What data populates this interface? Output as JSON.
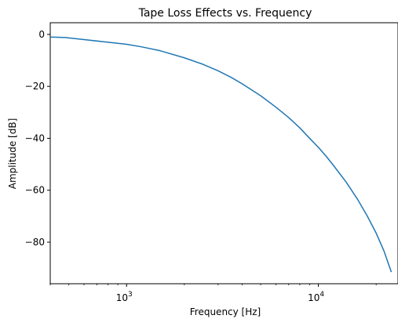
{
  "chart_data": {
    "type": "line",
    "title": "Tape Loss Effects vs. Frequency",
    "xlabel": "Frequency [Hz]",
    "ylabel": "Amplitude [dB]",
    "xscale": "log",
    "xlim": [
      400,
      26000
    ],
    "ylim": [
      -96,
      4.5
    ],
    "grid": false,
    "line_color": "#1f77b4",
    "x_ticks": [
      {
        "value": 1000,
        "base": "10",
        "exp": "3"
      },
      {
        "value": 10000,
        "base": "10",
        "exp": "4"
      }
    ],
    "y_ticks": [
      {
        "value": 0,
        "label": "0"
      },
      {
        "value": -20,
        "label": "−20"
      },
      {
        "value": -40,
        "label": "−40"
      },
      {
        "value": -60,
        "label": "−60"
      },
      {
        "value": -80,
        "label": "−80"
      }
    ],
    "series": [
      {
        "x": [
          400,
          480,
          600,
          800,
          1000,
          1200,
          1500,
          2000,
          2500,
          3000,
          3500,
          4000,
          5000,
          6000,
          7000,
          8000,
          9000,
          10000,
          11000,
          12000,
          14000,
          16000,
          18000,
          20000,
          22000,
          24000
        ],
        "y": [
          -1.0,
          -1.2,
          -2.0,
          -3.0,
          -3.8,
          -4.8,
          -6.3,
          -9.0,
          -11.5,
          -14.0,
          -16.5,
          -19.0,
          -23.6,
          -28.0,
          -32.0,
          -36.0,
          -40.0,
          -43.5,
          -47.0,
          -50.5,
          -57.0,
          -63.5,
          -70.0,
          -76.5,
          -83.5,
          -91.5
        ]
      }
    ]
  }
}
